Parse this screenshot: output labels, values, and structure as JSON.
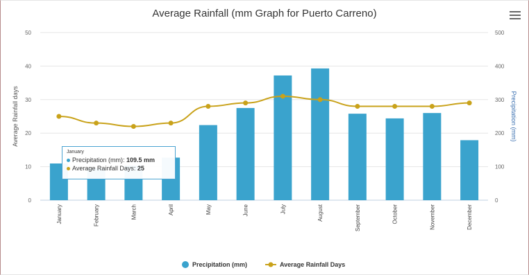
{
  "chart_data": {
    "type": "bar",
    "title": "Average Rainfall (mm Graph for Puerto Carreno)",
    "categories": [
      "January",
      "February",
      "March",
      "April",
      "May",
      "June",
      "July",
      "August",
      "September",
      "October",
      "November",
      "December"
    ],
    "series": [
      {
        "name": "Precipitation (mm)",
        "type": "bar",
        "axis": "right",
        "values": [
          109.5,
          95,
          103,
          127,
          224,
          275,
          372,
          393,
          258,
          244,
          260,
          179
        ],
        "color": "#3aa3cd"
      },
      {
        "name": "Average Rainfall Days",
        "type": "line",
        "axis": "left",
        "values": [
          25,
          23,
          22,
          23,
          28,
          29,
          31,
          30,
          28,
          28,
          28,
          29
        ],
        "color": "#c9a21a"
      }
    ],
    "y_left": {
      "label": "Average Rainfall days",
      "ticks": [
        "0",
        "10",
        "20",
        "30",
        "40",
        "50"
      ],
      "ylim": [
        0,
        50
      ]
    },
    "y_right": {
      "label": "Precipitation (mm)",
      "ticks": [
        "0",
        "100",
        "200",
        "300",
        "400",
        "500"
      ],
      "ylim": [
        0,
        500
      ]
    },
    "grid": true,
    "legend": "bottom-center"
  },
  "tooltip": {
    "header": "January",
    "precip_label": "Precipitation (mm): ",
    "precip_value": "109.5 mm",
    "days_label": "Average Rainfall Days: ",
    "days_value": "25"
  },
  "menu_icon": "hamburger-menu-icon"
}
